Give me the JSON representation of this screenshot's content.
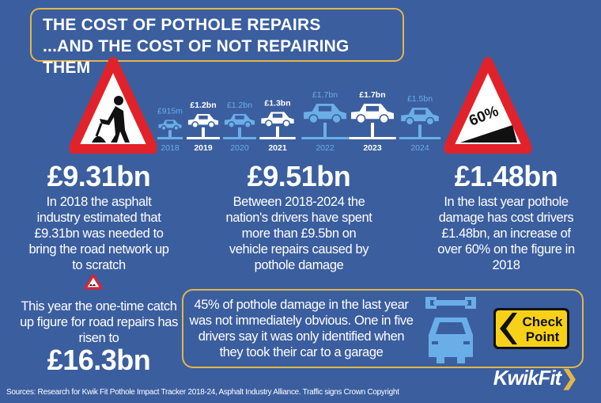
{
  "title": {
    "line1": "THE COST OF POTHOLE REPAIRS",
    "line2": "...AND THE COST OF NOT REPAIRING THEM"
  },
  "colors": {
    "background": "#3b5e9f",
    "accent": "#e3b54a",
    "light_blue": "#6aaee8",
    "sign_red": "#e2222a",
    "sign_yellow": "#f7d117"
  },
  "lifts": [
    {
      "year": "2018",
      "label": "£915m",
      "value": 0.915,
      "highlight": false
    },
    {
      "year": "2019",
      "label": "£1.2bn",
      "value": 1.2,
      "highlight": true
    },
    {
      "year": "2020",
      "label": "£1.2bn",
      "value": 1.2,
      "highlight": false
    },
    {
      "year": "2021",
      "label": "£1.3bn",
      "value": 1.3,
      "highlight": true
    },
    {
      "year": "2022",
      "label": "£1.7bn",
      "value": 1.7,
      "highlight": false
    },
    {
      "year": "2023",
      "label": "£1.7bn",
      "value": 1.7,
      "highlight": true
    },
    {
      "year": "2024",
      "label": "£1.5bn",
      "value": 1.5,
      "highlight": false
    }
  ],
  "left": {
    "value": "£9.31bn",
    "text": "In 2018 the asphalt industry estimated that £9.31bn was needed to bring the road network up to scratch",
    "catchup_text": "This year the one-time catch up figure for road repairs has risen to",
    "catchup_value": "£16.3bn"
  },
  "middle": {
    "value": "£9.51bn",
    "text": "Between 2018-2024 the nation's drivers have spent more than £9.5bn on vehicle repairs caused by pothole damage"
  },
  "right": {
    "value": "£1.48bn",
    "text": "In the last year pothole damage has cost drivers £1.48bn, an increase of over 60% on the figure in 2018",
    "sign_text": "60%"
  },
  "box": {
    "text": "45% of pothole damage in the last year was not immediately obvious. One in five drivers say it was only identified when they took their car to a garage",
    "sign_line1": "Check",
    "sign_line2": "Point"
  },
  "sources": "Sources: Research for Kwik Fit Pothole Impact Tracker 2018-24, Asphalt Industry Alliance. Traffic signs Crown Copyright",
  "logo": "KwikFit"
}
